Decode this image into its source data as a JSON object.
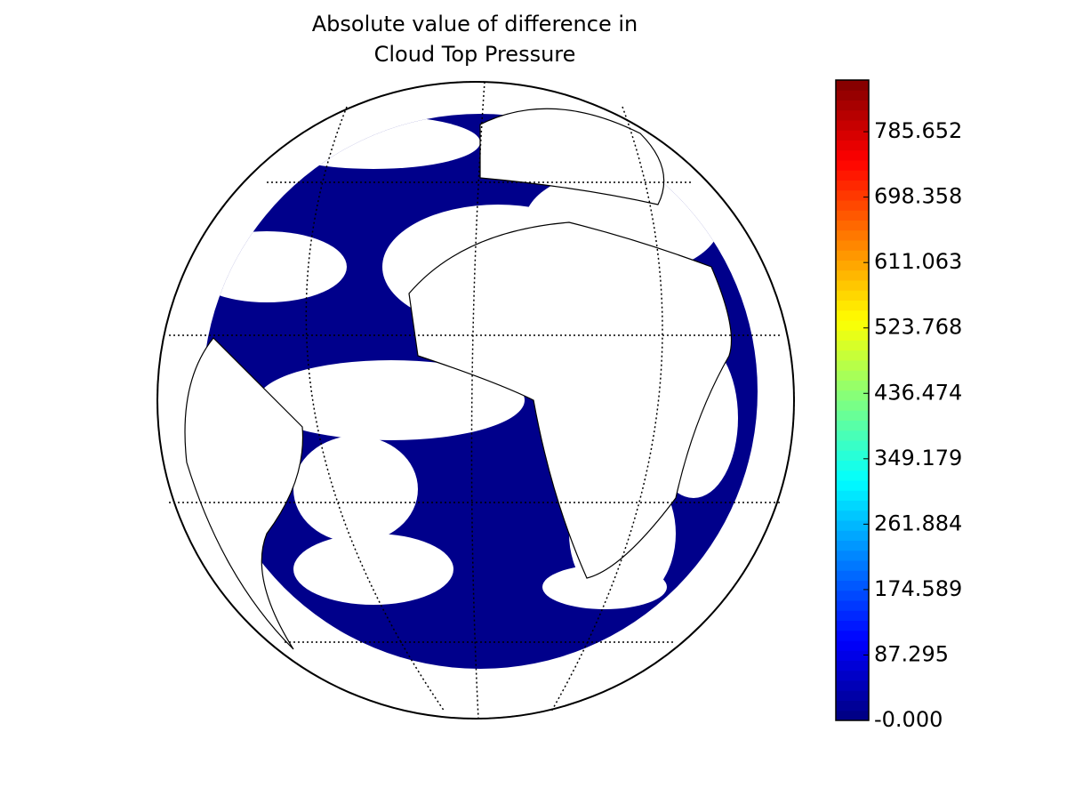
{
  "chart_data": {
    "type": "map",
    "title": [
      "Absolute value of difference in",
      "Cloud Top Pressure"
    ],
    "colormap": "jet",
    "clim": [
      0,
      854.6
    ],
    "cticks": [
      {
        "value": 0,
        "label": "-0.000"
      },
      87.295,
      174.589,
      261.884,
      349.179,
      436.474,
      523.768,
      611.063,
      698.358,
      785.652
    ]
  }
}
